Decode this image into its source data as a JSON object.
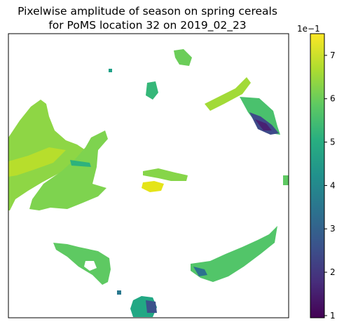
{
  "chart_data": {
    "type": "heatmap",
    "title_line1": "Pixelwise amplitude of season on spring cereals",
    "title_line2": "for PoMS location 32 on 2019_02_23",
    "xlabel": "",
    "ylabel": "",
    "axes_ticks_visible": false,
    "colormap": "viridis",
    "colorbar": {
      "min": 0.95,
      "max": 7.5,
      "ticks": [
        1,
        2,
        3,
        4,
        5,
        6,
        7
      ],
      "tick_labels": [
        "1",
        "2",
        "3",
        "4",
        "5",
        "6",
        "7"
      ],
      "offset_label": "1e−1"
    },
    "regions": [
      {
        "id": "west-large-field",
        "dominant_value": 6.2
      },
      {
        "id": "center-left-field",
        "dominant_value": 6.0
      },
      {
        "id": "north-small-a",
        "dominant_value": 6.0
      },
      {
        "id": "north-small-b",
        "dominant_value": 5.1
      },
      {
        "id": "northeast-strip",
        "dominant_value": 6.8
      },
      {
        "id": "east-field",
        "dominant_value": 5.4
      },
      {
        "id": "east-dark-patch",
        "dominant_value": 2.2
      },
      {
        "id": "center-small",
        "dominant_value": 6.5
      },
      {
        "id": "center-bright",
        "dominant_value": 7.3
      },
      {
        "id": "southwest-field",
        "dominant_value": 5.8
      },
      {
        "id": "southeast-field",
        "dominant_value": 5.5
      },
      {
        "id": "south-small",
        "dominant_value": 4.6
      },
      {
        "id": "south-dark-patch",
        "dominant_value": 2.6
      }
    ],
    "colors": {
      "v1": "#440154",
      "v2": "#472d7b",
      "v3": "#3b528b",
      "v4": "#2c728e",
      "v5": "#21918c",
      "v6": "#28ae80",
      "v7": "#5ec962",
      "v8": "#addc30",
      "v9": "#fde725"
    }
  }
}
